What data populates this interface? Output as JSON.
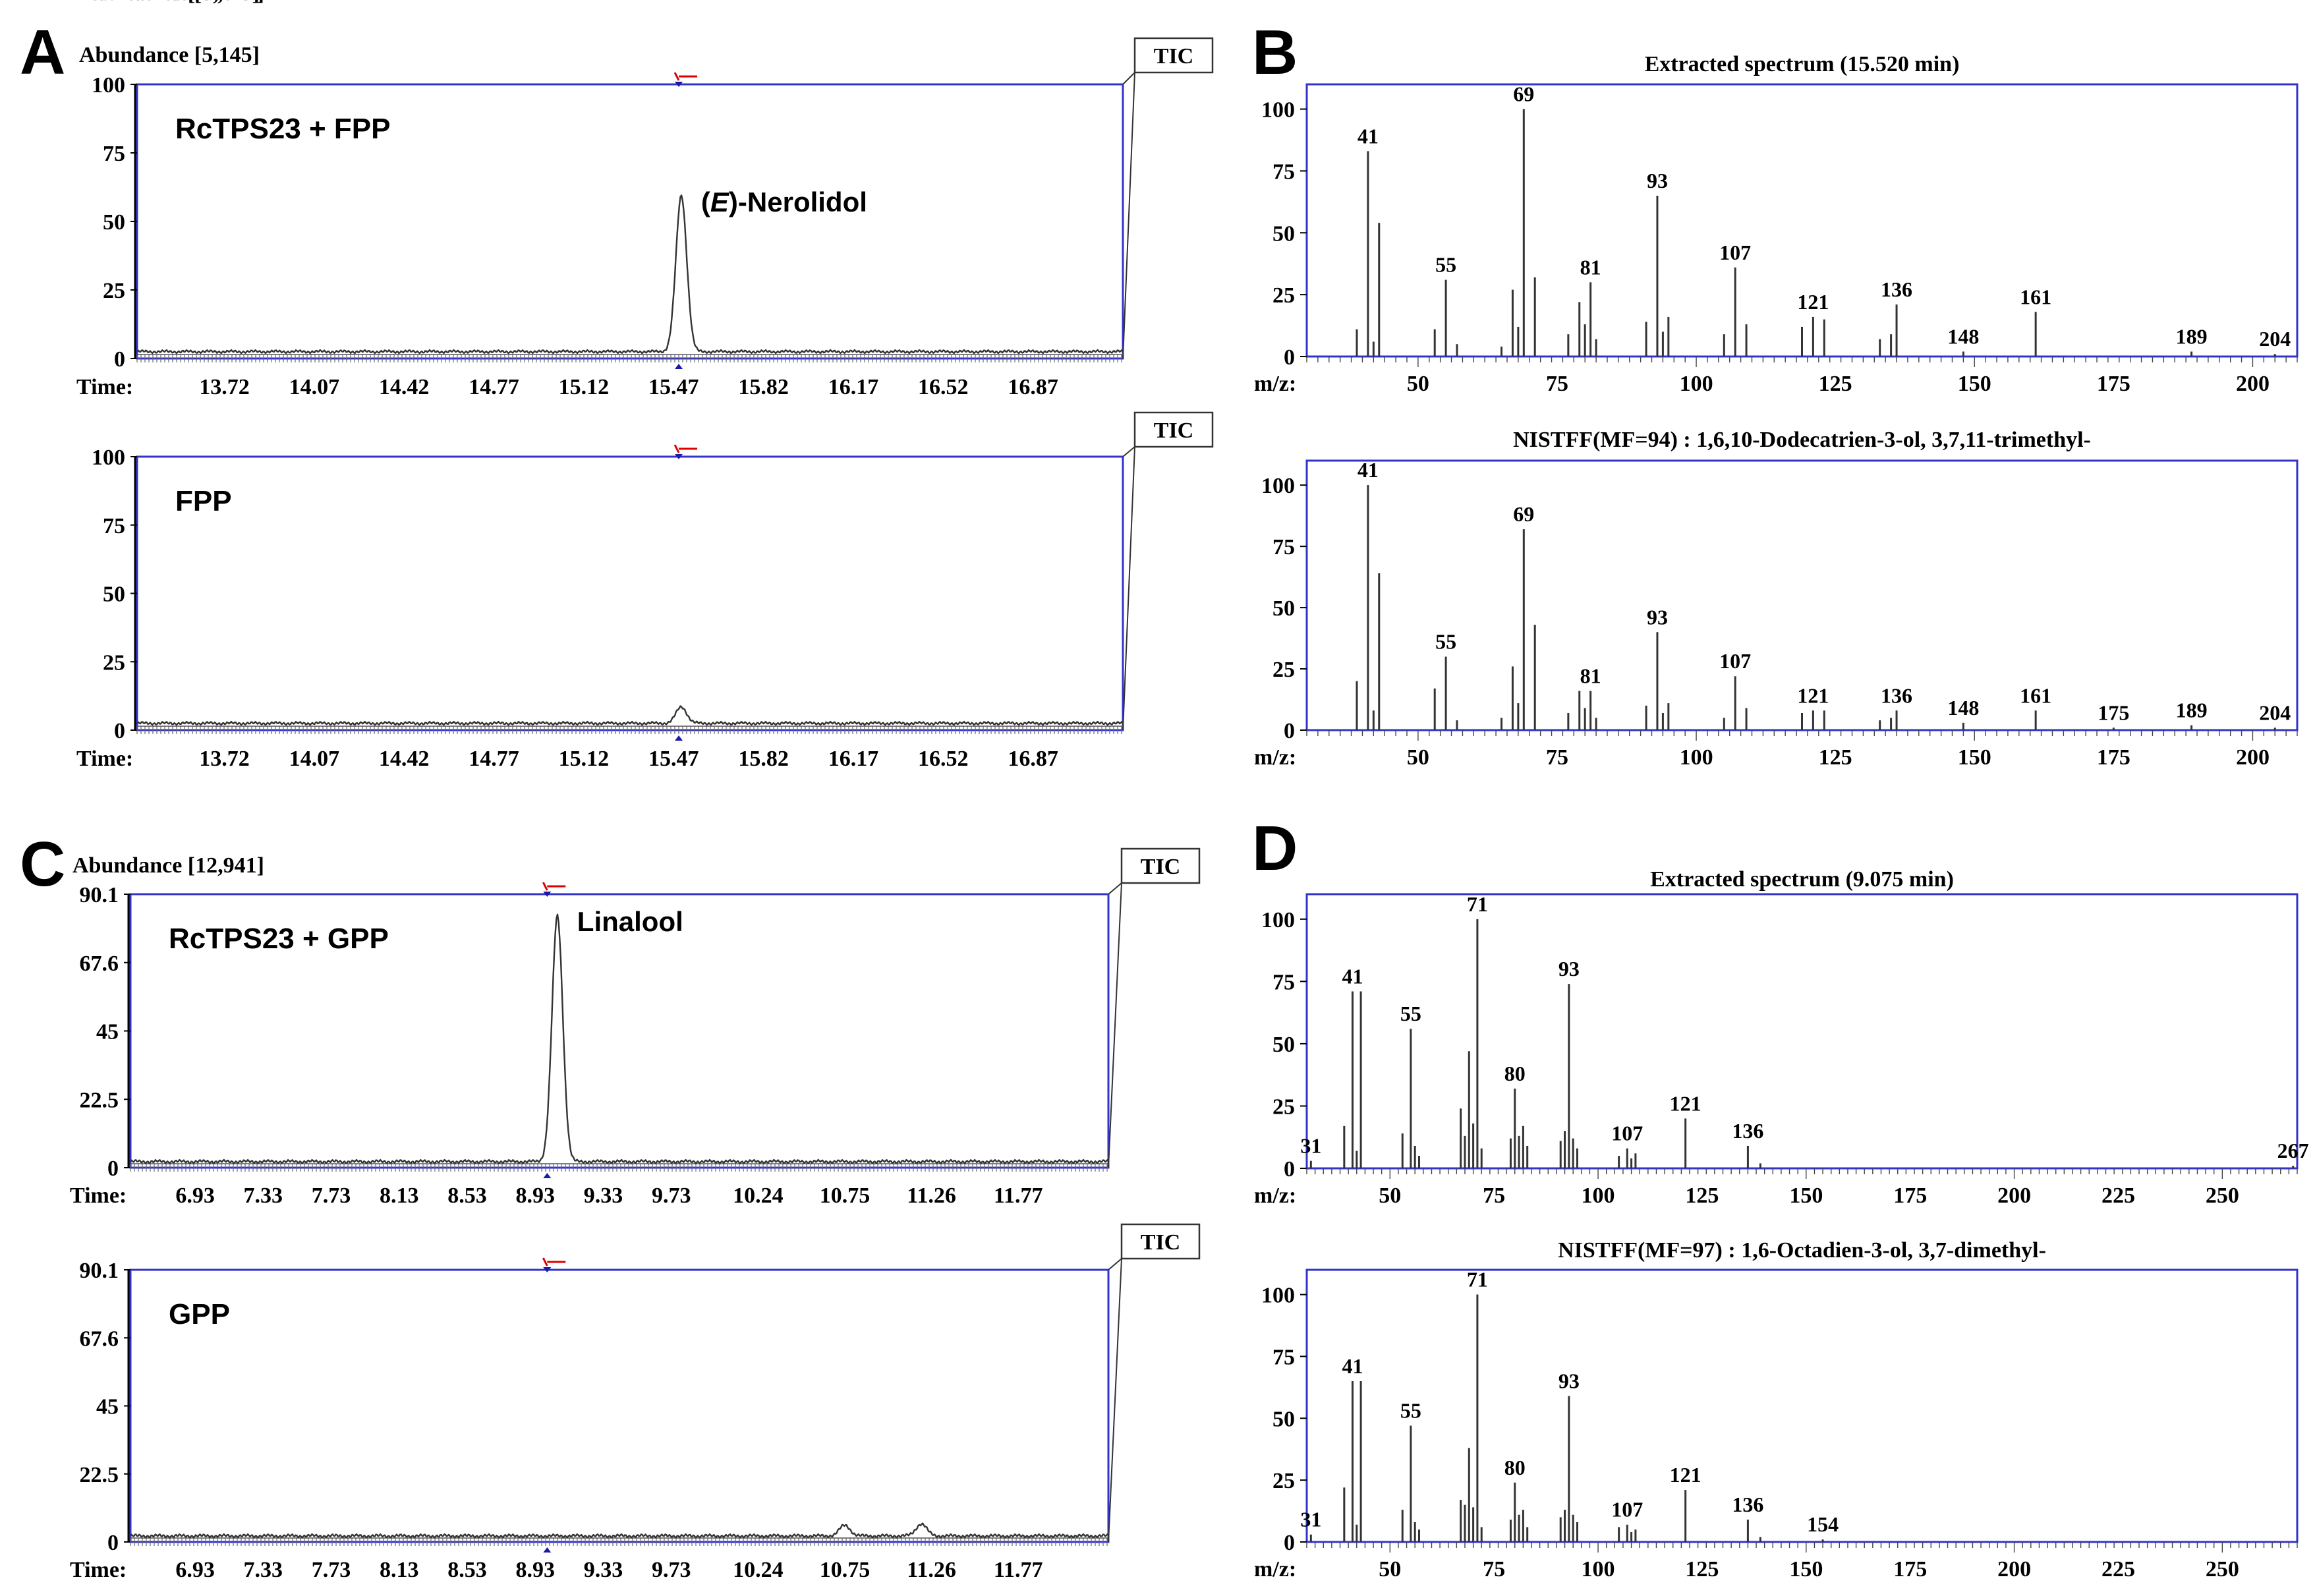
{
  "chart_data": [
    {
      "id": "A1",
      "type": "line",
      "panel_letter": "A",
      "ylabel": "Abundance [5,145]",
      "time_label": "Time:",
      "tic_label": "TIC",
      "inset_label": "RcTPS23 + FPP",
      "y_ticks": [
        "100",
        "75",
        "50",
        "25",
        "0"
      ],
      "ylim": [
        0,
        100
      ],
      "xlim": [
        13.38,
        17.22
      ],
      "x_tick_values": [
        13.72,
        14.07,
        14.42,
        14.77,
        15.12,
        15.47,
        15.82,
        16.17,
        16.52,
        16.87
      ],
      "x_tick_labels": [
        "13.72",
        "14.07",
        "14.42",
        "14.77",
        "15.12",
        "15.47",
        "15.82",
        "16.17",
        "16.52",
        "16.87"
      ],
      "baseline": 2.5,
      "peaks": [
        {
          "x": 15.5,
          "height": 57,
          "label": "Nerolidol",
          "label_prefix": "(",
          "label_italic": "E",
          "label_suffix": ")-"
        }
      ],
      "marker_x": 15.49
    },
    {
      "id": "A2",
      "type": "line",
      "ylabel": "Abundance [5,145]",
      "time_label": "Time:",
      "tic_label": "TIC",
      "inset_label": "FPP",
      "y_ticks": [
        "100",
        "75",
        "50",
        "25",
        "0"
      ],
      "ylim": [
        0,
        100
      ],
      "xlim": [
        13.38,
        17.22
      ],
      "x_tick_values": [
        13.72,
        14.07,
        14.42,
        14.77,
        15.12,
        15.47,
        15.82,
        16.17,
        16.52,
        16.87
      ],
      "x_tick_labels": [
        "13.72",
        "14.07",
        "14.42",
        "14.77",
        "15.12",
        "15.47",
        "15.82",
        "16.17",
        "16.52",
        "16.87"
      ],
      "baseline": 2.5,
      "peaks": [
        {
          "x": 15.5,
          "height": 6
        }
      ],
      "marker_x": 15.49
    },
    {
      "id": "C1",
      "type": "line",
      "panel_letter": "C",
      "ylabel": "Abundance [12,941]",
      "time_label": "Time:",
      "tic_label": "TIC",
      "inset_label": "RcTPS23 + GPP",
      "y_ticks": [
        "90.1",
        "67.6",
        "45",
        "22.5",
        "0"
      ],
      "ylim": [
        0,
        90.1
      ],
      "xlim": [
        6.55,
        12.3
      ],
      "x_tick_values": [
        6.93,
        7.33,
        7.73,
        8.13,
        8.53,
        8.93,
        9.33,
        9.73,
        10.24,
        10.75,
        11.26,
        11.77
      ],
      "x_tick_labels": [
        "6.93",
        "7.33",
        "7.73",
        "8.13",
        "8.53",
        "8.93",
        "9.33",
        "9.73",
        "10.24",
        "10.75",
        "11.26",
        "11.77"
      ],
      "baseline": 2.0,
      "peaks": [
        {
          "x": 9.06,
          "height": 81,
          "label": "Linalool"
        }
      ],
      "marker_x": 9.0
    },
    {
      "id": "C2",
      "type": "line",
      "ylabel": "Abundance [12,941]",
      "time_label": "Time:",
      "tic_label": "TIC",
      "inset_label": "GPP",
      "y_ticks": [
        "90.1",
        "67.6",
        "45",
        "22.5",
        "0"
      ],
      "ylim": [
        0,
        90.1
      ],
      "xlim": [
        6.55,
        12.3
      ],
      "x_tick_values": [
        6.93,
        7.33,
        7.73,
        8.13,
        8.53,
        8.93,
        9.33,
        9.73,
        10.24,
        10.75,
        11.26,
        11.77
      ],
      "x_tick_labels": [
        "6.93",
        "7.33",
        "7.73",
        "8.13",
        "8.53",
        "8.93",
        "9.33",
        "9.73",
        "10.24",
        "10.75",
        "11.26",
        "11.77"
      ],
      "baseline": 2.0,
      "peaks": [
        {
          "x": 10.75,
          "height": 3.5
        },
        {
          "x": 11.2,
          "height": 4
        }
      ],
      "marker_x": 9.0
    },
    {
      "id": "B1",
      "type": "bar",
      "panel_letter": "B",
      "title": "Extracted spectrum (15.520 min)",
      "xlabel": "m/z:",
      "y_ticks": [
        0,
        25,
        50,
        75,
        100
      ],
      "ylim": [
        0,
        110
      ],
      "xlim": [
        30,
        208
      ],
      "x_ticks": [
        50,
        75,
        100,
        125,
        150,
        175,
        200
      ],
      "mz": [
        39,
        41,
        42,
        43,
        53,
        55,
        57,
        65,
        67,
        68,
        69,
        71,
        77,
        79,
        80,
        81,
        82,
        91,
        93,
        94,
        95,
        105,
        107,
        109,
        119,
        121,
        123,
        133,
        135,
        136,
        148,
        161,
        189,
        204
      ],
      "intensity": [
        11,
        83,
        6,
        54,
        11,
        31,
        5,
        4,
        27,
        12,
        100,
        32,
        9,
        22,
        13,
        30,
        7,
        14,
        65,
        10,
        16,
        9,
        36,
        13,
        12,
        16,
        15,
        7,
        9,
        21,
        2,
        18,
        2,
        1
      ],
      "labels": [
        [
          41,
          "41"
        ],
        [
          55,
          "55"
        ],
        [
          69,
          "69"
        ],
        [
          81,
          "81"
        ],
        [
          93,
          "93"
        ],
        [
          107,
          "107"
        ],
        [
          121,
          "121"
        ],
        [
          136,
          "136"
        ],
        [
          148,
          "148"
        ],
        [
          161,
          "161"
        ],
        [
          189,
          "189"
        ],
        [
          204,
          "204"
        ]
      ]
    },
    {
      "id": "B2",
      "type": "bar",
      "title": "NISTFF(MF=94) : 1,6,10-Dodecatrien-3-ol, 3,7,11-trimethyl-",
      "xlabel": "m/z:",
      "y_ticks": [
        0,
        25,
        50,
        75,
        100
      ],
      "ylim": [
        0,
        110
      ],
      "xlim": [
        30,
        208
      ],
      "x_ticks": [
        50,
        75,
        100,
        125,
        150,
        175,
        200
      ],
      "mz": [
        39,
        41,
        42,
        43,
        53,
        55,
        57,
        65,
        67,
        68,
        69,
        71,
        77,
        79,
        80,
        81,
        82,
        91,
        93,
        94,
        95,
        105,
        107,
        109,
        119,
        121,
        123,
        133,
        135,
        136,
        148,
        161,
        175,
        189,
        204
      ],
      "intensity": [
        20,
        100,
        8,
        64,
        17,
        30,
        4,
        5,
        26,
        11,
        82,
        43,
        7,
        16,
        9,
        16,
        5,
        10,
        40,
        7,
        11,
        5,
        22,
        9,
        7,
        8,
        8,
        4,
        5,
        8,
        3,
        8,
        1,
        2,
        1
      ],
      "labels": [
        [
          41,
          "41"
        ],
        [
          55,
          "55"
        ],
        [
          69,
          "69"
        ],
        [
          81,
          "81"
        ],
        [
          93,
          "93"
        ],
        [
          107,
          "107"
        ],
        [
          121,
          "121"
        ],
        [
          136,
          "136"
        ],
        [
          148,
          "148"
        ],
        [
          161,
          "161"
        ],
        [
          175,
          "175"
        ],
        [
          189,
          "189"
        ],
        [
          204,
          "204"
        ]
      ]
    },
    {
      "id": "D1",
      "type": "bar",
      "panel_letter": "D",
      "title": "Extracted spectrum (9.075 min)",
      "xlabel": "m/z:",
      "y_ticks": [
        0,
        25,
        50,
        75,
        100
      ],
      "ylim": [
        0,
        110
      ],
      "xlim": [
        30,
        268
      ],
      "x_ticks": [
        50,
        75,
        100,
        125,
        150,
        175,
        200,
        225,
        250
      ],
      "mz": [
        31,
        39,
        41,
        42,
        43,
        53,
        55,
        56,
        57,
        67,
        68,
        69,
        70,
        71,
        72,
        79,
        80,
        81,
        82,
        83,
        91,
        92,
        93,
        94,
        95,
        105,
        107,
        108,
        109,
        121,
        136,
        139,
        267
      ],
      "intensity": [
        3,
        17,
        71,
        7,
        71,
        14,
        56,
        9,
        5,
        24,
        13,
        47,
        18,
        100,
        8,
        12,
        32,
        13,
        17,
        9,
        11,
        15,
        74,
        12,
        8,
        5,
        8,
        4,
        6,
        20,
        9,
        2,
        1
      ],
      "labels": [
        [
          31,
          "31"
        ],
        [
          41,
          "41"
        ],
        [
          55,
          "55"
        ],
        [
          71,
          "71"
        ],
        [
          80,
          "80"
        ],
        [
          93,
          "93"
        ],
        [
          107,
          "107"
        ],
        [
          121,
          "121"
        ],
        [
          136,
          "136"
        ],
        [
          267,
          "267"
        ]
      ]
    },
    {
      "id": "D2",
      "type": "bar",
      "title": "NISTFF(MF=97) : 1,6-Octadien-3-ol, 3,7-dimethyl-",
      "xlabel": "m/z:",
      "y_ticks": [
        0,
        25,
        50,
        75,
        100
      ],
      "ylim": [
        0,
        110
      ],
      "xlim": [
        30,
        268
      ],
      "x_ticks": [
        50,
        75,
        100,
        125,
        150,
        175,
        200,
        225,
        250
      ],
      "mz": [
        31,
        39,
        41,
        42,
        43,
        53,
        55,
        56,
        57,
        67,
        68,
        69,
        70,
        71,
        72,
        79,
        80,
        81,
        82,
        83,
        91,
        92,
        93,
        94,
        95,
        105,
        107,
        108,
        109,
        121,
        136,
        139,
        154
      ],
      "intensity": [
        3,
        22,
        65,
        7,
        65,
        13,
        47,
        8,
        5,
        17,
        15,
        38,
        14,
        100,
        6,
        9,
        24,
        11,
        13,
        6,
        10,
        13,
        59,
        11,
        8,
        6,
        7,
        4,
        5,
        21,
        9,
        2,
        1
      ],
      "labels": [
        [
          31,
          "31"
        ],
        [
          41,
          "41"
        ],
        [
          55,
          "55"
        ],
        [
          71,
          "71"
        ],
        [
          80,
          "80"
        ],
        [
          93,
          "93"
        ],
        [
          107,
          "107"
        ],
        [
          121,
          "121"
        ],
        [
          136,
          "136"
        ],
        [
          154,
          "154"
        ]
      ]
    }
  ]
}
